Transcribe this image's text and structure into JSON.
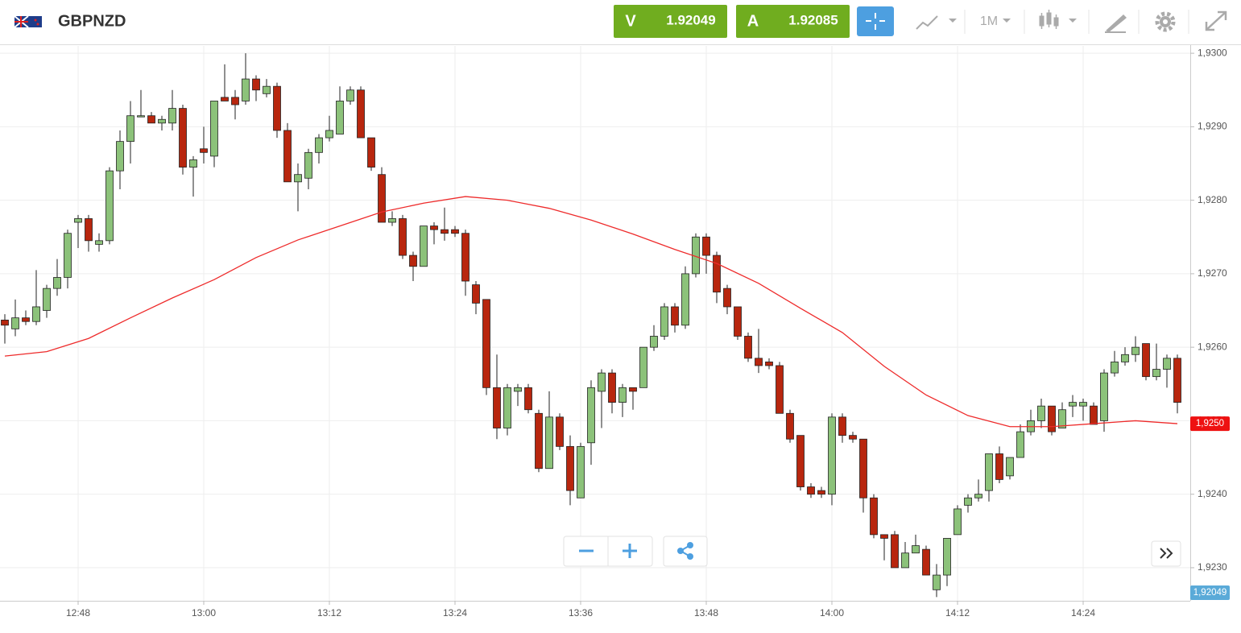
{
  "header": {
    "symbol": "GBPNZD",
    "sell": {
      "label": "V",
      "price": "1.92049"
    },
    "buy": {
      "label": "A",
      "price": "1.92085"
    },
    "timeframe": "1M"
  },
  "chart_data": {
    "type": "candlestick",
    "up_color": "#8cc27a",
    "down_color": "#b8260e",
    "x": [
      "12:41",
      "12:42",
      "12:43",
      "12:44",
      "12:45",
      "12:46",
      "12:47",
      "12:48",
      "12:49",
      "12:50",
      "12:51",
      "12:52",
      "12:53",
      "12:54",
      "12:55",
      "12:56",
      "12:57",
      "12:58",
      "12:59",
      "13:00",
      "13:01",
      "13:02",
      "13:03",
      "13:04",
      "13:05",
      "13:06",
      "13:07",
      "13:08",
      "13:09",
      "13:10",
      "13:11",
      "13:12",
      "13:13",
      "13:14",
      "13:15",
      "13:16",
      "13:17",
      "13:18",
      "13:19",
      "13:20",
      "13:21",
      "13:22",
      "13:23",
      "13:24",
      "13:25",
      "13:26",
      "13:27",
      "13:28",
      "13:29",
      "13:30",
      "13:31",
      "13:32",
      "13:33",
      "13:34",
      "13:35",
      "13:36",
      "13:37",
      "13:38",
      "13:39",
      "13:40",
      "13:41",
      "13:42",
      "13:43",
      "13:44",
      "13:45",
      "13:46",
      "13:47",
      "13:48",
      "13:49",
      "13:50",
      "13:51",
      "13:52",
      "13:53",
      "13:54",
      "13:55",
      "13:56",
      "13:57",
      "13:58",
      "13:59",
      "14:00",
      "14:01",
      "14:02",
      "14:03",
      "14:04",
      "14:05",
      "14:06",
      "14:07",
      "14:08",
      "14:09",
      "14:10",
      "14:11",
      "14:12",
      "14:13",
      "14:14",
      "14:15",
      "14:16",
      "14:17",
      "14:18",
      "14:19",
      "14:20",
      "14:21",
      "14:22",
      "14:23",
      "14:24",
      "14:25",
      "14:26",
      "14:27",
      "14:28",
      "14:29",
      "14:30",
      "14:31",
      "14:32",
      "14:33"
    ],
    "open": [
      1.92637,
      1.92625,
      1.9264,
      1.92635,
      1.9265,
      1.9268,
      1.92695,
      1.9277,
      1.92775,
      1.9274,
      1.92745,
      1.9284,
      1.9288,
      1.92915,
      1.92915,
      1.92905,
      1.92905,
      1.92925,
      1.92845,
      1.9287,
      1.9286,
      1.9294,
      1.9294,
      1.92935,
      1.92965,
      1.92945,
      1.92955,
      1.92895,
      1.92825,
      1.9283,
      1.92865,
      1.92885,
      1.9289,
      1.92935,
      1.9295,
      1.92885,
      1.92835,
      1.9277,
      1.92775,
      1.92725,
      1.9271,
      1.92765,
      1.9276,
      1.9276,
      1.92755,
      1.92685,
      1.92665,
      1.92545,
      1.9249,
      1.9254,
      1.92545,
      1.9251,
      1.92435,
      1.92505,
      1.92465,
      1.92395,
      1.9247,
      1.9254,
      1.92565,
      1.92525,
      1.92545,
      1.92545,
      1.926,
      1.92615,
      1.92655,
      1.9263,
      1.927,
      1.9275,
      1.92725,
      1.9268,
      1.92655,
      1.92615,
      1.92585,
      1.9258,
      1.92575,
      1.9251,
      1.9248,
      1.9241,
      1.92405,
      1.924,
      1.92505,
      1.9248,
      1.92475,
      1.92395,
      1.92345,
      1.92345,
      1.923,
      1.9232,
      1.92325,
      1.9227,
      1.9229,
      1.92345,
      1.92385,
      1.92395,
      1.92405,
      1.92455,
      1.92425,
      1.9245,
      1.92485,
      1.925,
      1.9252,
      1.9249,
      1.9252,
      1.9252,
      1.9252,
      1.925,
      1.92565,
      1.9258,
      1.9259,
      1.92605,
      1.9256,
      1.9257,
      1.92585
    ],
    "high": [
      1.92645,
      1.92665,
      1.9265,
      1.92705,
      1.92685,
      1.9272,
      1.9276,
      1.9278,
      1.9278,
      1.92755,
      1.92845,
      1.92895,
      1.92935,
      1.9295,
      1.9292,
      1.92915,
      1.9295,
      1.9293,
      1.9286,
      1.929,
      1.92935,
      1.92985,
      1.9295,
      1.93,
      1.9297,
      1.92965,
      1.9296,
      1.92905,
      1.9285,
      1.9287,
      1.9289,
      1.92915,
      1.92955,
      1.92955,
      1.92955,
      1.92885,
      1.92845,
      1.92785,
      1.9278,
      1.9273,
      1.92765,
      1.9277,
      1.9279,
      1.92765,
      1.9276,
      1.9269,
      1.92665,
      1.9259,
      1.9255,
      1.9255,
      1.9255,
      1.92515,
      1.9254,
      1.9251,
      1.9248,
      1.9247,
      1.92555,
      1.9257,
      1.9257,
      1.9255,
      1.92545,
      1.926,
      1.9263,
      1.9266,
      1.9266,
      1.9271,
      1.92755,
      1.92755,
      1.9273,
      1.92685,
      1.92655,
      1.9262,
      1.92625,
      1.92585,
      1.9258,
      1.92515,
      1.9248,
      1.92415,
      1.9241,
      1.9251,
      1.9251,
      1.92485,
      1.92475,
      1.924,
      1.92345,
      1.9235,
      1.92335,
      1.92345,
      1.9233,
      1.92305,
      1.9234,
      1.92385,
      1.924,
      1.9242,
      1.92455,
      1.92465,
      1.9245,
      1.92495,
      1.92515,
      1.9253,
      1.9252,
      1.92525,
      1.92535,
      1.9253,
      1.92525,
      1.9257,
      1.92595,
      1.926,
      1.92615,
      1.92605,
      1.92605,
      1.9259,
      1.9259
    ],
    "low": [
      1.92605,
      1.92615,
      1.9263,
      1.9263,
      1.9264,
      1.9267,
      1.9268,
      1.92735,
      1.9273,
      1.9273,
      1.9274,
      1.92815,
      1.9285,
      1.92915,
      1.92905,
      1.92895,
      1.92895,
      1.92835,
      1.92805,
      1.9285,
      1.92845,
      1.92935,
      1.9291,
      1.9293,
      1.92935,
      1.9294,
      1.92885,
      1.92825,
      1.92785,
      1.92815,
      1.9285,
      1.9288,
      1.9289,
      1.9293,
      1.92885,
      1.9284,
      1.9277,
      1.92765,
      1.9272,
      1.9269,
      1.9271,
      1.9274,
      1.92745,
      1.9275,
      1.9267,
      1.92645,
      1.92535,
      1.92475,
      1.9248,
      1.9252,
      1.9251,
      1.9243,
      1.92435,
      1.9246,
      1.92385,
      1.92395,
      1.9244,
      1.9249,
      1.9251,
      1.92505,
      1.92515,
      1.92545,
      1.92595,
      1.9261,
      1.9262,
      1.92625,
      1.92695,
      1.927,
      1.9266,
      1.92645,
      1.9261,
      1.9258,
      1.92565,
      1.9257,
      1.9251,
      1.9247,
      1.92405,
      1.92395,
      1.92395,
      1.92385,
      1.9247,
      1.9247,
      1.92375,
      1.9234,
      1.9231,
      1.923,
      1.923,
      1.9232,
      1.9229,
      1.9226,
      1.92275,
      1.92345,
      1.92375,
      1.9239,
      1.9239,
      1.92415,
      1.9242,
      1.9245,
      1.9248,
      1.9249,
      1.9248,
      1.9249,
      1.92505,
      1.925,
      1.92495,
      1.92485,
      1.9256,
      1.92575,
      1.9258,
      1.92555,
      1.92555,
      1.92545,
      1.9251
    ],
    "close": [
      1.9263,
      1.9264,
      1.92635,
      1.92655,
      1.9268,
      1.92695,
      1.92755,
      1.92775,
      1.92745,
      1.92745,
      1.9284,
      1.9288,
      1.92915,
      1.92915,
      1.92905,
      1.9291,
      1.92925,
      1.92845,
      1.92855,
      1.92865,
      1.92935,
      1.92935,
      1.9293,
      1.92965,
      1.9295,
      1.92955,
      1.92895,
      1.92825,
      1.92835,
      1.92865,
      1.92885,
      1.92895,
      1.92935,
      1.9295,
      1.92885,
      1.92845,
      1.9277,
      1.92775,
      1.92725,
      1.9271,
      1.92765,
      1.9276,
      1.92755,
      1.92755,
      1.9269,
      1.9266,
      1.92545,
      1.9249,
      1.92545,
      1.92545,
      1.92515,
      1.92435,
      1.92505,
      1.92465,
      1.92405,
      1.92465,
      1.92545,
      1.92565,
      1.92525,
      1.92545,
      1.9254,
      1.926,
      1.92615,
      1.92655,
      1.9263,
      1.927,
      1.9275,
      1.92725,
      1.92675,
      1.92655,
      1.92615,
      1.92585,
      1.92575,
      1.92575,
      1.9251,
      1.92475,
      1.9241,
      1.924,
      1.924,
      1.92505,
      1.9248,
      1.92475,
      1.92395,
      1.92345,
      1.9234,
      1.923,
      1.9232,
      1.9233,
      1.9229,
      1.9229,
      1.9234,
      1.9238,
      1.92395,
      1.924,
      1.92455,
      1.9242,
      1.9245,
      1.92485,
      1.925,
      1.9252,
      1.92485,
      1.92515,
      1.92525,
      1.92525,
      1.92495,
      1.92565,
      1.9258,
      1.9259,
      1.926,
      1.9256,
      1.9257,
      1.92585,
      1.92525
    ],
    "series": [
      {
        "color": "#ee2b2b",
        "x": [
          "12:41",
          "12:45",
          "12:49",
          "12:53",
          "12:57",
          "13:01",
          "13:05",
          "13:09",
          "13:13",
          "13:17",
          "13:21",
          "13:25",
          "13:29",
          "13:33",
          "13:37",
          "13:41",
          "13:45",
          "13:49",
          "13:53",
          "13:57",
          "14:01",
          "14:05",
          "14:09",
          "14:13",
          "14:17",
          "14:21",
          "14:25",
          "14:29",
          "14:33"
        ],
        "values": [
          1.92588,
          1.92594,
          1.92612,
          1.9264,
          1.92667,
          1.92692,
          1.92722,
          1.92746,
          1.92765,
          1.92784,
          1.92796,
          1.92805,
          1.928,
          1.92789,
          1.92773,
          1.92754,
          1.92733,
          1.92714,
          1.92687,
          1.92653,
          1.9262,
          1.92574,
          1.92535,
          1.92507,
          1.92492,
          1.92492,
          1.92496,
          1.925,
          1.92496
        ]
      }
    ],
    "price_tags": [
      {
        "value": 1.92496,
        "label": "1,9250",
        "color": "#ee1111"
      },
      {
        "value": 1.92049,
        "label": "1,92049",
        "color": "#5aaad8"
      }
    ],
    "xlim": [
      "12:41",
      "14:34"
    ],
    "xticks": [
      "12:48",
      "13:00",
      "13:12",
      "13:24",
      "13:36",
      "13:48",
      "14:00",
      "14:12",
      "14:24"
    ],
    "ylim": [
      1.92255,
      1.9301
    ],
    "yticks": [
      {
        "value": 1.923,
        "label": "1,9230"
      },
      {
        "value": 1.924,
        "label": "1,9240"
      },
      {
        "value": 1.925,
        "label": "1,9250"
      },
      {
        "value": 1.926,
        "label": "1,9260"
      },
      {
        "value": 1.927,
        "label": "1,9270"
      },
      {
        "value": 1.928,
        "label": "1,9280"
      },
      {
        "value": 1.929,
        "label": "1,9290"
      },
      {
        "value": 1.93,
        "label": "1,9300"
      }
    ],
    "grid": true
  }
}
